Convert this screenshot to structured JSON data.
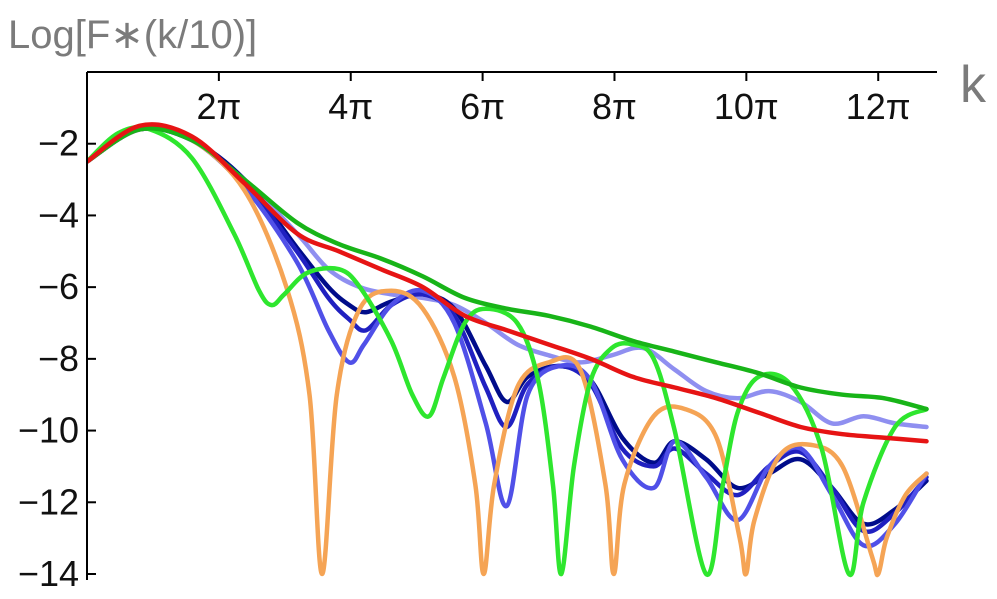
{
  "chart_data": {
    "type": "line",
    "title": "",
    "ylabel": "Log[F∗(k/10)]",
    "xlabel": "k",
    "xlim": [
      0,
      40.5
    ],
    "ylim": [
      -14,
      0
    ],
    "grid": false,
    "x_ticks": [
      {
        "value": 6.2832,
        "label": "2π"
      },
      {
        "value": 12.5664,
        "label": "4π"
      },
      {
        "value": 18.8496,
        "label": "6π"
      },
      {
        "value": 25.1327,
        "label": "8π"
      },
      {
        "value": 31.4159,
        "label": "10π"
      },
      {
        "value": 37.6991,
        "label": "12π"
      }
    ],
    "y_ticks": [
      {
        "value": -2,
        "label": "−2"
      },
      {
        "value": -4,
        "label": "−4"
      },
      {
        "value": -6,
        "label": "−6"
      },
      {
        "value": -8,
        "label": "−8"
      },
      {
        "value": -10,
        "label": "−10"
      },
      {
        "value": -12,
        "label": "−12"
      },
      {
        "value": -14,
        "label": "−14"
      }
    ],
    "series": [
      {
        "color": "#8f8ff0",
        "x": [
          0,
          2.5,
          5,
          7.5,
          10,
          11.5,
          13,
          14.5,
          16,
          17.5,
          19,
          20.5,
          22,
          23.5,
          25,
          26.5,
          28,
          29.5,
          31,
          32.5,
          34,
          35.5,
          37,
          38.5,
          40
        ],
        "y": [
          -2.5,
          -1.6,
          -1.9,
          -3.0,
          -4.5,
          -5.5,
          -6.0,
          -6.2,
          -6.3,
          -6.5,
          -7.0,
          -7.6,
          -7.9,
          -8.1,
          -7.9,
          -7.7,
          -8.3,
          -8.9,
          -9.1,
          -8.9,
          -9.2,
          -9.8,
          -9.6,
          -9.8,
          -9.9
        ]
      },
      {
        "color": "#000c8a",
        "x": [
          0,
          2.5,
          5,
          7.5,
          10,
          11.5,
          12.5,
          13.3,
          14.5,
          16,
          17.5,
          19,
          20,
          21,
          22.5,
          24,
          25.5,
          27,
          28,
          29.5,
          31,
          32.5,
          34,
          35.5,
          37,
          38.5,
          40
        ],
        "y": [
          -2.5,
          -1.6,
          -1.9,
          -3.0,
          -4.9,
          -6.0,
          -6.5,
          -6.7,
          -6.4,
          -6.2,
          -6.6,
          -8.2,
          -9.2,
          -8.5,
          -8.2,
          -8.6,
          -10.2,
          -10.9,
          -10.3,
          -10.8,
          -11.6,
          -11.2,
          -10.8,
          -11.6,
          -12.6,
          -12.2,
          -11.4
        ]
      },
      {
        "color": "#2020c0",
        "x": [
          0,
          2.5,
          5,
          7.5,
          10,
          11.5,
          12.5,
          13.3,
          14.5,
          16,
          17.5,
          19,
          20,
          21,
          22.5,
          24,
          25.5,
          27,
          28,
          29.5,
          31,
          32.5,
          34,
          35.5,
          37,
          38.5,
          40
        ],
        "y": [
          -2.5,
          -1.6,
          -1.9,
          -3.1,
          -5.0,
          -6.3,
          -6.9,
          -7.2,
          -6.5,
          -6.2,
          -6.8,
          -8.8,
          -9.9,
          -8.7,
          -8.2,
          -8.7,
          -10.5,
          -11.0,
          -10.5,
          -11.2,
          -11.8,
          -11.0,
          -10.6,
          -11.6,
          -12.8,
          -12.3,
          -11.3
        ]
      },
      {
        "color": "#5050e8",
        "x": [
          0,
          2.5,
          5,
          7.5,
          10,
          11.5,
          12.5,
          13.2,
          14.5,
          16,
          17.5,
          19,
          20,
          21,
          22.5,
          24,
          25.5,
          27,
          28,
          29.5,
          31,
          32.5,
          34,
          35.5,
          37,
          38.5,
          40
        ],
        "y": [
          -2.5,
          -1.6,
          -1.9,
          -3.2,
          -5.3,
          -7.2,
          -8.1,
          -7.6,
          -6.5,
          -6.1,
          -7.0,
          -9.8,
          -12.1,
          -9.0,
          -8.2,
          -8.6,
          -10.8,
          -11.6,
          -10.3,
          -11.3,
          -12.5,
          -11.0,
          -10.5,
          -11.8,
          -13.2,
          -12.6,
          -11.2
        ]
      },
      {
        "color": "#f5a455",
        "x": [
          0,
          2.5,
          5,
          7.5,
          9.5,
          10.6,
          11.2,
          11.9,
          13,
          14.5,
          16,
          17.5,
          18.5,
          18.9,
          19.4,
          20.5,
          22,
          23.5,
          24.7,
          25.1,
          25.6,
          27,
          28.5,
          30,
          31.1,
          31.4,
          31.8,
          33,
          34.5,
          36,
          37.4,
          37.7,
          38.1,
          39,
          40
        ],
        "y": [
          -2.5,
          -1.6,
          -1.9,
          -3.3,
          -6.0,
          -9.0,
          -14.0,
          -9.0,
          -6.6,
          -6.1,
          -6.6,
          -8.5,
          -11.5,
          -14.0,
          -11.5,
          -8.8,
          -8.1,
          -8.3,
          -11.5,
          -14.0,
          -11.5,
          -9.6,
          -9.4,
          -10.2,
          -13.0,
          -14.0,
          -12.5,
          -10.7,
          -10.4,
          -11.0,
          -13.5,
          -14.0,
          -13.0,
          -11.8,
          -11.2
        ]
      },
      {
        "color": "#2ee62e",
        "x": [
          0,
          1.5,
          3,
          5,
          7,
          8.2,
          8.8,
          9.4,
          10.5,
          12,
          13,
          14.5,
          15.5,
          16.3,
          17,
          18,
          19,
          20.5,
          21.5,
          22.2,
          22.6,
          23.2,
          24,
          25,
          26,
          27,
          28,
          29.5,
          30.3,
          31,
          32,
          33.5,
          35,
          36.3,
          37,
          38.5,
          40
        ],
        "y": [
          -2.5,
          -1.7,
          -1.6,
          -2.4,
          -4.5,
          -6.1,
          -6.5,
          -6.2,
          -5.6,
          -5.5,
          -6.0,
          -7.5,
          -9.0,
          -9.6,
          -8.5,
          -7.0,
          -6.6,
          -7.0,
          -8.6,
          -11.5,
          -14.0,
          -11.0,
          -8.6,
          -7.7,
          -7.6,
          -8.0,
          -10.0,
          -14.0,
          -11.5,
          -9.5,
          -8.5,
          -8.7,
          -10.5,
          -14.0,
          -12.0,
          -9.9,
          -9.4
        ]
      },
      {
        "color": "#18b418",
        "x": [
          0,
          2.5,
          5,
          7.5,
          10,
          12,
          14,
          16,
          18,
          20,
          22,
          24,
          26,
          28,
          30,
          32,
          34,
          36,
          38,
          40
        ],
        "y": [
          -2.5,
          -1.6,
          -1.9,
          -3.0,
          -4.2,
          -4.8,
          -5.2,
          -5.7,
          -6.3,
          -6.6,
          -6.8,
          -7.1,
          -7.5,
          -7.8,
          -8.1,
          -8.4,
          -8.8,
          -9.0,
          -9.1,
          -9.4
        ]
      },
      {
        "color": "#e61414",
        "x": [
          0,
          2.5,
          5,
          7.5,
          10,
          12,
          14,
          16,
          18,
          20,
          22,
          24,
          26,
          28,
          30,
          32,
          34,
          36,
          38,
          40
        ],
        "y": [
          -2.5,
          -1.5,
          -1.8,
          -3.1,
          -4.5,
          -5.0,
          -5.5,
          -6.0,
          -6.8,
          -7.2,
          -7.6,
          -8.0,
          -8.5,
          -8.8,
          -9.1,
          -9.5,
          -9.9,
          -10.1,
          -10.2,
          -10.3
        ]
      }
    ]
  }
}
